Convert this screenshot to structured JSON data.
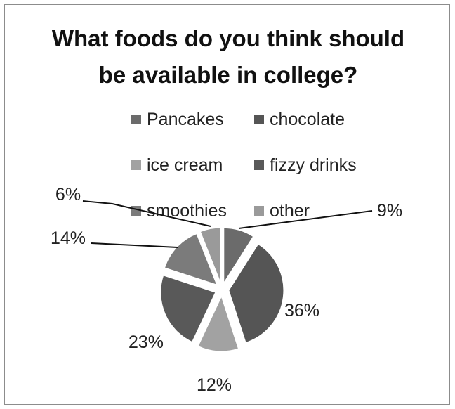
{
  "chart_data": {
    "type": "pie",
    "title_lines": [
      "What foods do you think should",
      "be available in college?"
    ],
    "legend_position": "top",
    "categories": [
      "Pancakes",
      "chocolate",
      "ice cream",
      "fizzy drinks",
      "smoothies",
      "other"
    ],
    "values": [
      9,
      36,
      12,
      23,
      14,
      6
    ],
    "value_labels": [
      "9%",
      "36%",
      "12%",
      "23%",
      "14%",
      "6%"
    ],
    "colors": [
      "#6b6b6b",
      "#555555",
      "#a2a2a2",
      "#595959",
      "#7b7b7b",
      "#9a9a9a"
    ]
  }
}
